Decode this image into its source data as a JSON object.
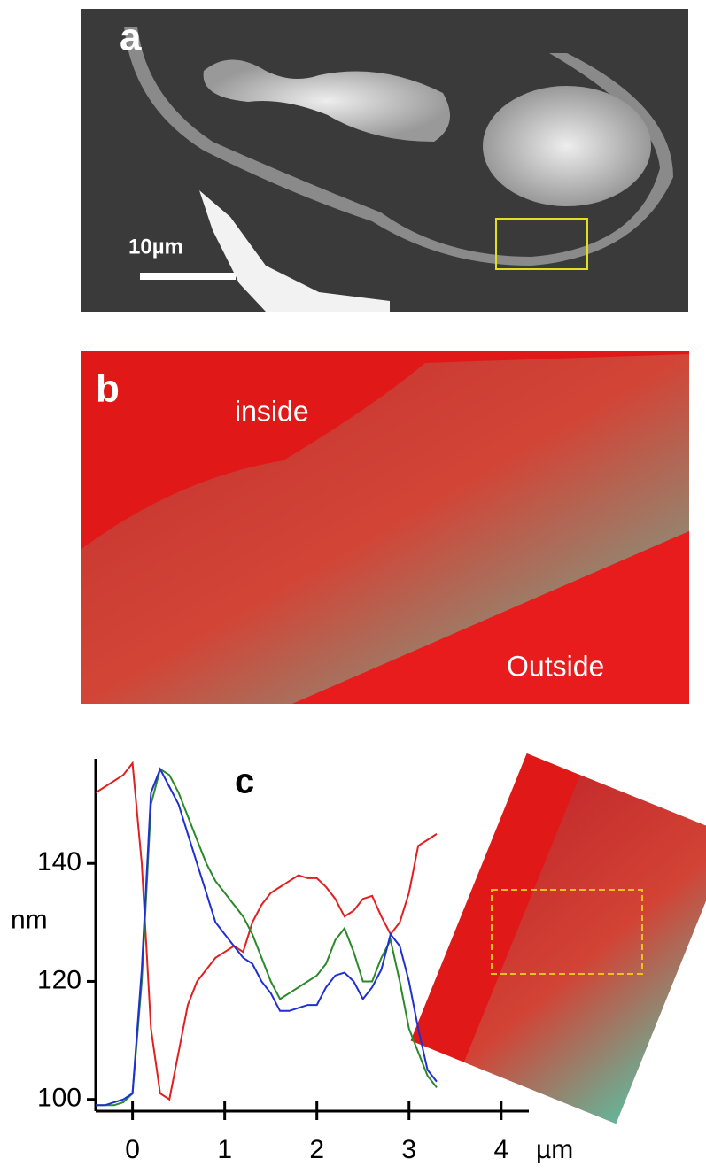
{
  "panels": {
    "a": {
      "label": "a",
      "scale_bar": "10µm"
    },
    "b": {
      "label": "b",
      "inside": "inside",
      "outside": "Outside"
    },
    "c": {
      "label": "c"
    }
  },
  "chart_data": {
    "type": "line",
    "y_label": "nm",
    "x_unit": "µm",
    "xlim": [
      -0.4,
      4.3
    ],
    "ylim": [
      98,
      157
    ],
    "xticks": [
      0,
      1,
      2,
      3,
      4
    ],
    "yticks": [
      100,
      120,
      140
    ],
    "x": [
      -0.4,
      -0.3,
      -0.2,
      -0.1,
      0,
      0.1,
      0.2,
      0.3,
      0.4,
      0.5,
      0.6,
      0.7,
      0.8,
      0.9,
      1.0,
      1.1,
      1.2,
      1.3,
      1.4,
      1.5,
      1.6,
      1.7,
      1.8,
      1.9,
      2.0,
      2.1,
      2.2,
      2.3,
      2.4,
      2.5,
      2.6,
      2.7,
      2.8,
      2.9,
      3.0,
      3.1,
      3.2,
      3.3
    ],
    "series": [
      {
        "color": "#e02020",
        "values": [
          152,
          153,
          154,
          155,
          157,
          140,
          112,
          101,
          100,
          108,
          116,
          120,
          122,
          124,
          125,
          126,
          125,
          130,
          133,
          135,
          136,
          137,
          138,
          137.5,
          137.5,
          136,
          134,
          131,
          132,
          134,
          134.5,
          131,
          128,
          130,
          135,
          143,
          144,
          145
        ]
      },
      {
        "color": "#2a8a2a",
        "values": [
          99,
          99,
          99,
          99.5,
          101,
          120,
          150,
          156,
          155,
          152,
          148,
          144,
          140,
          137,
          135,
          133,
          131,
          128,
          124,
          120,
          117,
          118,
          119,
          120,
          121,
          123,
          127,
          129,
          125,
          120,
          120,
          124,
          127,
          120,
          112,
          108,
          104,
          102
        ]
      },
      {
        "color": "#2030d0",
        "values": [
          99,
          99,
          99.5,
          100,
          101,
          122,
          152,
          156,
          153,
          150,
          145,
          140,
          135,
          130,
          128,
          126,
          124,
          123,
          120,
          118,
          115,
          115,
          115.5,
          116,
          116,
          119,
          121,
          121.5,
          120,
          117,
          119,
          122,
          128,
          126,
          120,
          112,
          105,
          103
        ]
      }
    ]
  }
}
